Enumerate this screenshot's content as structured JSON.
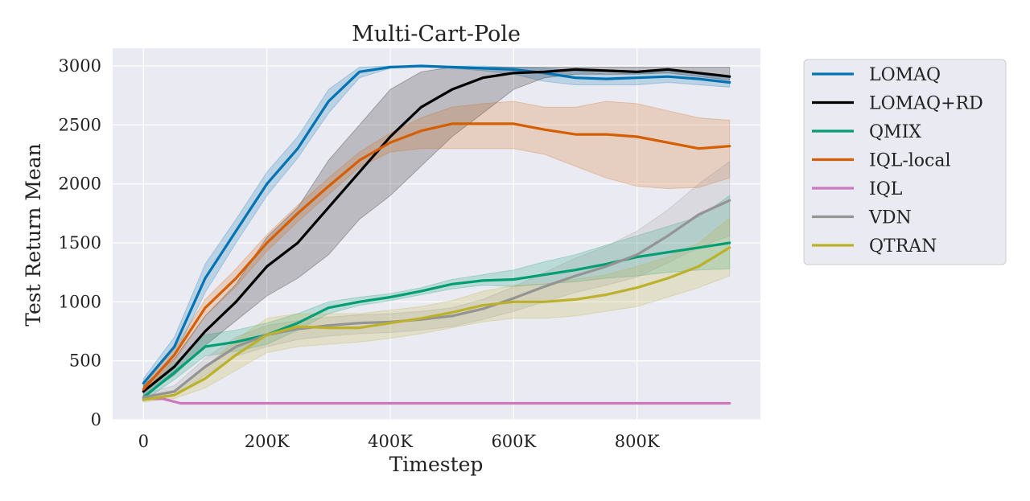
{
  "chart_data": {
    "type": "line",
    "title": "Multi-Cart-Pole",
    "xlabel": "Timestep",
    "ylabel": "Test Return Mean",
    "xlim": [
      -50000,
      1000000
    ],
    "ylim": [
      0,
      3150
    ],
    "xticks": [
      0,
      200000,
      400000,
      600000,
      800000
    ],
    "xtick_labels": [
      "0",
      "200K",
      "400K",
      "600K",
      "800K"
    ],
    "yticks": [
      0,
      500,
      1000,
      1500,
      2000,
      2500,
      3000
    ],
    "ytick_labels": [
      "0",
      "500",
      "1000",
      "1500",
      "2000",
      "2500",
      "3000"
    ],
    "grid": true,
    "legend_position": "outside-right",
    "series": [
      {
        "name": "LOMAQ",
        "color": "#0173b2",
        "x": [
          0,
          50000,
          100000,
          150000,
          200000,
          250000,
          300000,
          350000,
          400000,
          450000,
          500000,
          550000,
          600000,
          650000,
          700000,
          750000,
          800000,
          850000,
          900000,
          950000
        ],
        "y": [
          310,
          620,
          1200,
          1600,
          2000,
          2300,
          2700,
          2950,
          2990,
          3000,
          2990,
          2980,
          2970,
          2940,
          2900,
          2890,
          2900,
          2910,
          2890,
          2860
        ],
        "lower": [
          280,
          540,
          1080,
          1500,
          1900,
          2220,
          2600,
          2900,
          2980,
          2990,
          2980,
          2960,
          2930,
          2870,
          2840,
          2840,
          2840,
          2860,
          2840,
          2820
        ],
        "upper": [
          350,
          700,
          1320,
          1700,
          2100,
          2400,
          2800,
          2990,
          3000,
          3000,
          3000,
          3000,
          2990,
          2980,
          2960,
          2930,
          2940,
          2950,
          2930,
          2900
        ]
      },
      {
        "name": "LOMAQ+RD",
        "color": "#000000",
        "x": [
          0,
          50000,
          100000,
          150000,
          200000,
          250000,
          300000,
          350000,
          400000,
          450000,
          500000,
          550000,
          600000,
          650000,
          700000,
          750000,
          800000,
          850000,
          900000,
          950000
        ],
        "y": [
          240,
          450,
          750,
          1000,
          1300,
          1500,
          1800,
          2100,
          2400,
          2650,
          2800,
          2900,
          2940,
          2950,
          2970,
          2960,
          2950,
          2970,
          2940,
          2910
        ],
        "lower": [
          200,
          380,
          630,
          840,
          1050,
          1200,
          1400,
          1700,
          1900,
          2150,
          2400,
          2600,
          2800,
          2900,
          2930,
          2930,
          2930,
          2940,
          2910,
          2880
        ],
        "upper": [
          290,
          520,
          880,
          1150,
          1550,
          1800,
          2200,
          2500,
          2800,
          2950,
          2990,
          2990,
          2990,
          2990,
          2990,
          2990,
          2990,
          2990,
          2990,
          2990
        ]
      },
      {
        "name": "QMIX",
        "color": "#029e73",
        "x": [
          0,
          50000,
          100000,
          150000,
          200000,
          250000,
          300000,
          350000,
          400000,
          450000,
          500000,
          550000,
          600000,
          650000,
          700000,
          750000,
          800000,
          850000,
          900000,
          950000
        ],
        "y": [
          190,
          400,
          620,
          660,
          720,
          820,
          950,
          1000,
          1040,
          1090,
          1150,
          1180,
          1190,
          1230,
          1270,
          1320,
          1380,
          1420,
          1460,
          1500
        ],
        "lower": [
          160,
          340,
          540,
          580,
          640,
          760,
          900,
          970,
          1010,
          1060,
          1110,
          1140,
          1130,
          1150,
          1170,
          1200,
          1220,
          1250,
          1270,
          1280
        ],
        "upper": [
          230,
          480,
          720,
          760,
          820,
          900,
          1000,
          1040,
          1070,
          1120,
          1190,
          1230,
          1270,
          1340,
          1400,
          1480,
          1560,
          1640,
          1720,
          1900
        ]
      },
      {
        "name": "IQL-local",
        "color": "#d55e00",
        "x": [
          0,
          50000,
          100000,
          150000,
          200000,
          250000,
          300000,
          350000,
          400000,
          450000,
          500000,
          550000,
          600000,
          650000,
          700000,
          750000,
          800000,
          850000,
          900000,
          950000
        ],
        "y": [
          260,
          550,
          950,
          1200,
          1500,
          1750,
          1980,
          2200,
          2350,
          2450,
          2510,
          2510,
          2510,
          2460,
          2420,
          2420,
          2400,
          2350,
          2300,
          2320
        ],
        "lower": [
          230,
          500,
          880,
          1130,
          1430,
          1680,
          1910,
          2140,
          2270,
          2300,
          2300,
          2300,
          2300,
          2250,
          2150,
          2050,
          1980,
          1960,
          1970,
          2050
        ],
        "upper": [
          290,
          600,
          1020,
          1280,
          1570,
          1820,
          2050,
          2270,
          2430,
          2560,
          2650,
          2680,
          2700,
          2650,
          2650,
          2700,
          2680,
          2620,
          2560,
          2540
        ]
      },
      {
        "name": "IQL",
        "color": "#cc78bc",
        "x": [
          0,
          30000,
          60000,
          100000,
          200000,
          300000,
          400000,
          500000,
          600000,
          700000,
          800000,
          900000,
          950000
        ],
        "y": [
          180,
          180,
          140,
          140,
          140,
          140,
          140,
          140,
          140,
          140,
          140,
          140,
          140
        ],
        "lower": [
          170,
          170,
          135,
          135,
          135,
          135,
          135,
          135,
          135,
          135,
          135,
          135,
          135
        ],
        "upper": [
          190,
          190,
          145,
          145,
          145,
          145,
          145,
          145,
          145,
          145,
          145,
          145,
          145
        ]
      },
      {
        "name": "VDN",
        "color": "#949494",
        "x": [
          0,
          50000,
          100000,
          150000,
          200000,
          250000,
          300000,
          350000,
          400000,
          450000,
          500000,
          550000,
          600000,
          650000,
          700000,
          750000,
          800000,
          850000,
          900000,
          950000
        ],
        "y": [
          190,
          240,
          450,
          620,
          720,
          770,
          800,
          820,
          830,
          850,
          880,
          940,
          1030,
          1130,
          1220,
          1300,
          1400,
          1560,
          1740,
          1860
        ],
        "lower": [
          160,
          200,
          380,
          540,
          620,
          680,
          710,
          730,
          740,
          760,
          790,
          850,
          920,
          1000,
          1080,
          1140,
          1210,
          1330,
          1460,
          1560
        ],
        "upper": [
          220,
          290,
          520,
          700,
          800,
          840,
          870,
          890,
          900,
          920,
          950,
          1020,
          1130,
          1250,
          1370,
          1470,
          1600,
          1780,
          2000,
          2190
        ]
      },
      {
        "name": "QTRAN",
        "color": "#bcb12b",
        "x": [
          0,
          50000,
          100000,
          150000,
          200000,
          250000,
          300000,
          350000,
          400000,
          450000,
          500000,
          550000,
          600000,
          650000,
          700000,
          750000,
          800000,
          850000,
          900000,
          950000
        ],
        "y": [
          170,
          210,
          350,
          550,
          720,
          790,
          780,
          780,
          820,
          860,
          910,
          970,
          1000,
          1000,
          1020,
          1060,
          1120,
          1200,
          1300,
          1460
        ],
        "lower": [
          150,
          180,
          270,
          420,
          570,
          620,
          640,
          660,
          690,
          730,
          780,
          830,
          860,
          860,
          880,
          920,
          960,
          1040,
          1120,
          1220
        ],
        "upper": [
          200,
          250,
          440,
          680,
          860,
          900,
          900,
          900,
          930,
          960,
          1010,
          1090,
          1140,
          1150,
          1190,
          1230,
          1300,
          1380,
          1500,
          1710
        ]
      }
    ]
  }
}
